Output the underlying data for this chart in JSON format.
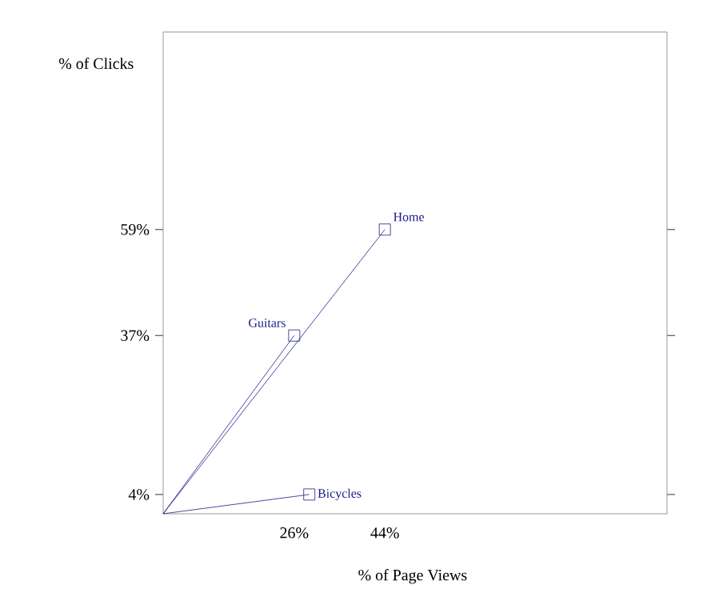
{
  "chart_data": {
    "type": "line",
    "xlabel": "% of Page Views",
    "ylabel": "% of Clicks",
    "xlim": [
      0,
      100
    ],
    "ylim": [
      0,
      100
    ],
    "xticks": [
      {
        "value": 26,
        "label": "26%"
      },
      {
        "value": 44,
        "label": "44%"
      }
    ],
    "yticks": [
      {
        "value": 4,
        "label": "4%"
      },
      {
        "value": 37,
        "label": "37%"
      },
      {
        "value": 59,
        "label": "59%"
      }
    ],
    "grid": false,
    "legend": false,
    "marker": "square",
    "line_style": "solid",
    "series": [
      {
        "name": "Guitars",
        "color": "#1c1c8c",
        "x": [
          0,
          26
        ],
        "values": [
          0,
          37
        ]
      },
      {
        "name": "Home",
        "color": "#1c1c8c",
        "x": [
          0,
          44
        ],
        "values": [
          0,
          59
        ]
      },
      {
        "name": "Bicycles",
        "color": "#1c1c8c",
        "x": [
          0,
          29
        ],
        "values": [
          0,
          4
        ]
      }
    ]
  }
}
